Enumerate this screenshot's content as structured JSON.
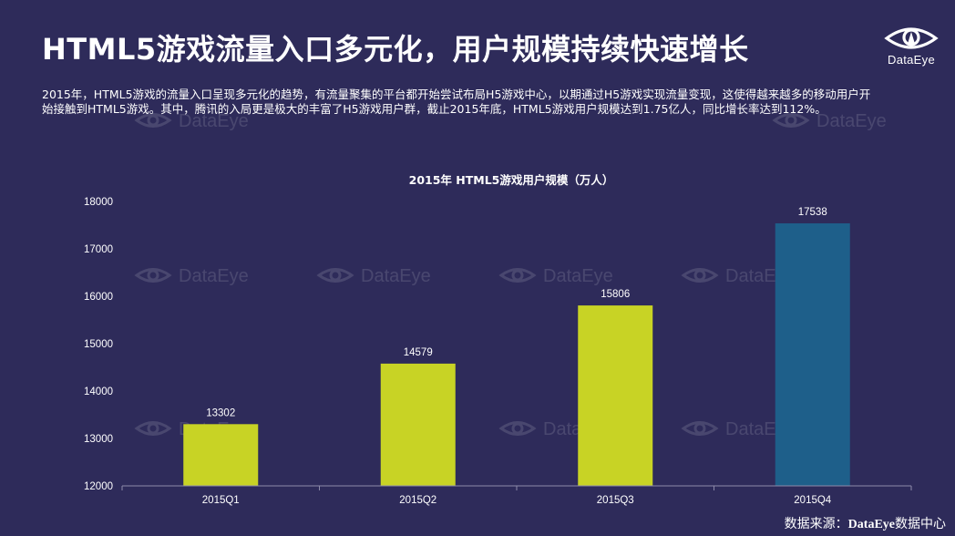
{
  "title": "HTML5游戏流量入口多元化，用户规模持续快速增长",
  "logo": {
    "text": "DataEye",
    "icon": "eye-logo-icon"
  },
  "intro": "2015年，HTML5游戏的流量入口呈现多元化的趋势，有流量聚集的平台都开始尝试布局H5游戏中心，以期通过H5游戏实现流量变现，这使得越来越多的移动用户开始接触到HTML5游戏。其中，腾讯的入局更是极大的丰富了H5游戏用户群，截止2015年底，HTML5游戏用户规模达到1.75亿人，同比增长率达到112%。",
  "watermark": "DataEye",
  "colors": {
    "background": "#2e2b5a",
    "bar": "#c8d325",
    "bar_highlight": "#1e5f8a"
  },
  "chart_data": {
    "type": "bar",
    "title": "2015年 HTML5游戏用户规模（万人）",
    "categories": [
      "2015Q1",
      "2015Q2",
      "2015Q3",
      "2015Q4"
    ],
    "values": [
      13302,
      14579,
      15806,
      17538
    ],
    "data_labels": [
      "13302",
      "14579",
      "15806",
      "17538"
    ],
    "highlight_index": 3,
    "ylim": [
      12000,
      18000
    ],
    "yticks": [
      "12000",
      "13000",
      "14000",
      "15000",
      "16000",
      "17000",
      "18000"
    ],
    "grid": false,
    "legend": "none",
    "xlabel": "",
    "ylabel": ""
  },
  "source": {
    "prefix": "数据来源：",
    "brand": "DataEye",
    "suffix": "数据中心"
  }
}
